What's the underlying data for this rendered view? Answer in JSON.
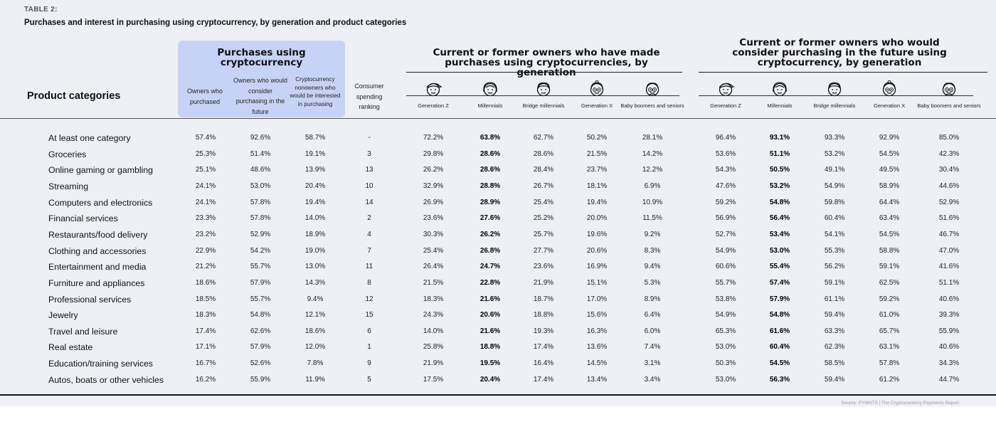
{
  "table_label": "TABLE 2:",
  "title": "Purchases and interest in purchasing using cryptocurrency, by generation and product categories",
  "row_header": "Product categories",
  "groups": {
    "purchases": "Purchases using cryptocurrency",
    "made": "Current or former owners who have made purchases using cryptocurrencies, by generation",
    "consider": "Current or former owners who would consider purchasing in the future using cryptocurrency, by generation"
  },
  "purchase_cols": [
    "Owners who purchased",
    "Owners who would consider purchasing in the future",
    "Cryptocurrency nonowners who would be interested in purchasing"
  ],
  "ranking_header": "Consumer spending ranking",
  "generations": [
    {
      "label": "Generation Z",
      "icon": "generation-z-face-icon"
    },
    {
      "label": "Millennials",
      "icon": "millennials-face-icon"
    },
    {
      "label": "Bridge millennials",
      "icon": "bridge-millennials-face-icon"
    },
    {
      "label": "Generation X",
      "icon": "generation-x-face-icon"
    },
    {
      "label": "Baby boomers and seniors",
      "icon": "baby-boomers-face-icon"
    }
  ],
  "bold_generation_index": 1,
  "rows": [
    {
      "label": "At least one category",
      "purchase": [
        "57.4%",
        "92.6%",
        "58.7%"
      ],
      "rank": "-",
      "made": [
        "72.2%",
        "63.8%",
        "62.7%",
        "50.2%",
        "28.1%"
      ],
      "consider": [
        "96.4%",
        "93.1%",
        "93.3%",
        "92.9%",
        "85.0%"
      ]
    },
    {
      "label": "Groceries",
      "purchase": [
        "25.3%",
        "51.4%",
        "19.1%"
      ],
      "rank": "3",
      "made": [
        "29.8%",
        "28.6%",
        "28.6%",
        "21.5%",
        "14.2%"
      ],
      "consider": [
        "53.6%",
        "51.1%",
        "53.2%",
        "54.5%",
        "42.3%"
      ]
    },
    {
      "label": "Online gaming or gambling",
      "purchase": [
        "25.1%",
        "48.6%",
        "13.9%"
      ],
      "rank": "13",
      "made": [
        "26.2%",
        "28.6%",
        "28.4%",
        "23.7%",
        "12.2%"
      ],
      "consider": [
        "54.3%",
        "50.5%",
        "49.1%",
        "49.5%",
        "30.4%"
      ]
    },
    {
      "label": "Streaming",
      "purchase": [
        "24.1%",
        "53.0%",
        "20.4%"
      ],
      "rank": "10",
      "made": [
        "32.9%",
        "28.8%",
        "26.7%",
        "18.1%",
        "6.9%"
      ],
      "consider": [
        "47.6%",
        "53.2%",
        "54.9%",
        "58.9%",
        "44.6%"
      ]
    },
    {
      "label": "Computers and electronics",
      "purchase": [
        "24.1%",
        "57.8%",
        "19.4%"
      ],
      "rank": "14",
      "made": [
        "26.9%",
        "28.9%",
        "25.4%",
        "19.4%",
        "10.9%"
      ],
      "consider": [
        "59.2%",
        "54.8%",
        "59.8%",
        "64.4%",
        "52.9%"
      ]
    },
    {
      "label": "Financial services",
      "purchase": [
        "23.3%",
        "57.8%",
        "14.0%"
      ],
      "rank": "2",
      "made": [
        "23.6%",
        "27.6%",
        "25.2%",
        "20.0%",
        "11.5%"
      ],
      "consider": [
        "56.9%",
        "56.4%",
        "60.4%",
        "63.4%",
        "51.6%"
      ]
    },
    {
      "label": "Restaurants/food delivery",
      "purchase": [
        "23.2%",
        "52.9%",
        "18.9%"
      ],
      "rank": "4",
      "made": [
        "30.3%",
        "26.2%",
        "25.7%",
        "19.6%",
        "9.2%"
      ],
      "consider": [
        "52.7%",
        "53.4%",
        "54.1%",
        "54.5%",
        "46.7%"
      ]
    },
    {
      "label": "Clothing and accessories",
      "purchase": [
        "22.9%",
        "54.2%",
        "19.0%"
      ],
      "rank": "7",
      "made": [
        "25.4%",
        "26.8%",
        "27.7%",
        "20.6%",
        "8.3%"
      ],
      "consider": [
        "54.9%",
        "53.0%",
        "55.3%",
        "58.8%",
        "47.0%"
      ]
    },
    {
      "label": "Entertainment and media",
      "purchase": [
        "21.2%",
        "55.7%",
        "13.0%"
      ],
      "rank": "11",
      "made": [
        "26.4%",
        "24.7%",
        "23.6%",
        "16.9%",
        "9.4%"
      ],
      "consider": [
        "60.6%",
        "55.4%",
        "56.2%",
        "59.1%",
        "41.6%"
      ]
    },
    {
      "label": "Furniture and appliances",
      "purchase": [
        "18.6%",
        "57.9%",
        "14.3%"
      ],
      "rank": "8",
      "made": [
        "21.5%",
        "22.8%",
        "21.9%",
        "15.1%",
        "5.3%"
      ],
      "consider": [
        "55.7%",
        "57.4%",
        "59.1%",
        "62.5%",
        "51.1%"
      ]
    },
    {
      "label": "Professional services",
      "purchase": [
        "18.5%",
        "55.7%",
        "9.4%"
      ],
      "rank": "12",
      "made": [
        "18.3%",
        "21.6%",
        "18.7%",
        "17.0%",
        "8.9%"
      ],
      "consider": [
        "53.8%",
        "57.9%",
        "61.1%",
        "59.2%",
        "40.6%"
      ]
    },
    {
      "label": "Jewelry",
      "purchase": [
        "18.3%",
        "54.8%",
        "12.1%"
      ],
      "rank": "15",
      "made": [
        "24.3%",
        "20.6%",
        "18.8%",
        "15.6%",
        "6.4%"
      ],
      "consider": [
        "54.9%",
        "54.8%",
        "59.4%",
        "61.0%",
        "39.3%"
      ]
    },
    {
      "label": "Travel and leisure",
      "purchase": [
        "17.4%",
        "62.6%",
        "18.6%"
      ],
      "rank": "6",
      "made": [
        "14.0%",
        "21.6%",
        "19.3%",
        "16.3%",
        "6.0%"
      ],
      "consider": [
        "65.3%",
        "61.6%",
        "63.3%",
        "65.7%",
        "55.9%"
      ]
    },
    {
      "label": "Real estate",
      "purchase": [
        "17.1%",
        "57.9%",
        "12.0%"
      ],
      "rank": "1",
      "made": [
        "25.8%",
        "18.8%",
        "17.4%",
        "13.6%",
        "7.4%"
      ],
      "consider": [
        "53.0%",
        "60.4%",
        "62.3%",
        "63.1%",
        "40.6%"
      ]
    },
    {
      "label": "Education/training services",
      "purchase": [
        "16.7%",
        "52.6%",
        "7.8%"
      ],
      "rank": "9",
      "made": [
        "21.9%",
        "19.5%",
        "16.4%",
        "14.5%",
        "3.1%"
      ],
      "consider": [
        "50.3%",
        "54.5%",
        "58.5%",
        "57.8%",
        "34.3%"
      ]
    },
    {
      "label": "Autos, boats or other vehicles",
      "purchase": [
        "16.2%",
        "55.9%",
        "11.9%"
      ],
      "rank": "5",
      "made": [
        "17.5%",
        "20.4%",
        "17.4%",
        "13.4%",
        "3.4%"
      ],
      "consider": [
        "53.0%",
        "56.3%",
        "59.4%",
        "61.2%",
        "44.7%"
      ]
    }
  ],
  "source": "Source: PYMNTS | The Cryptocurrency Payments Report"
}
